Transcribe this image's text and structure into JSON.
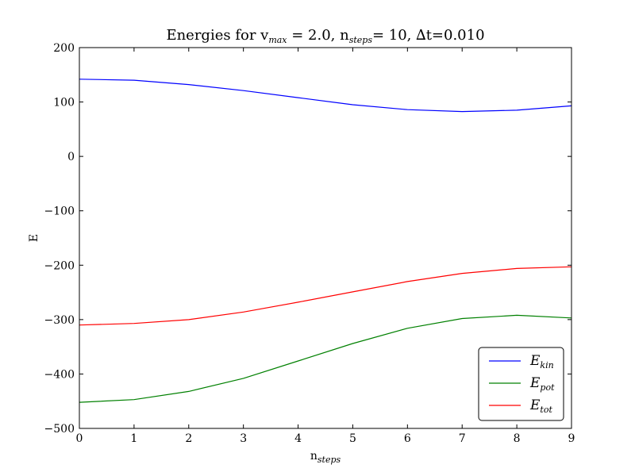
{
  "chart_data": {
    "type": "line",
    "title": {
      "base1": "Energies for v",
      "sub1": "max",
      "mid1": " = 2.0, n",
      "sub2": "steps",
      "mid2": "= 10, ∆t=0.010"
    },
    "xlabel": {
      "base": "n",
      "sub": "steps"
    },
    "ylabel": "E",
    "xlim": [
      0,
      9
    ],
    "ylim": [
      -500,
      200
    ],
    "xticks": [
      0,
      1,
      2,
      3,
      4,
      5,
      6,
      7,
      8,
      9
    ],
    "yticks": [
      -500,
      -400,
      -300,
      -200,
      -100,
      0,
      100,
      200
    ],
    "ytick_labels": [
      "−500",
      "−400",
      "−300",
      "−200",
      "−100",
      "0",
      "100",
      "200"
    ],
    "x": [
      0,
      1,
      2,
      3,
      4,
      5,
      6,
      7,
      8,
      9
    ],
    "grid": false,
    "legend_position": "lower-right",
    "series": [
      {
        "name_base": "E",
        "name_sub": "kin",
        "color": "#0000ff",
        "values": [
          142,
          140,
          132,
          121,
          108,
          95,
          86,
          82.5,
          85,
          93
        ]
      },
      {
        "name_base": "E",
        "name_sub": "pot",
        "color": "#008000",
        "values": [
          -452,
          -447,
          -432,
          -408,
          -376,
          -344,
          -316,
          -298,
          -292,
          -297
        ]
      },
      {
        "name_base": "E",
        "name_sub": "tot",
        "color": "#ff0000",
        "values": [
          -310,
          -307,
          -300,
          -286,
          -268,
          -249,
          -230,
          -215,
          -206,
          -203
        ]
      }
    ]
  }
}
